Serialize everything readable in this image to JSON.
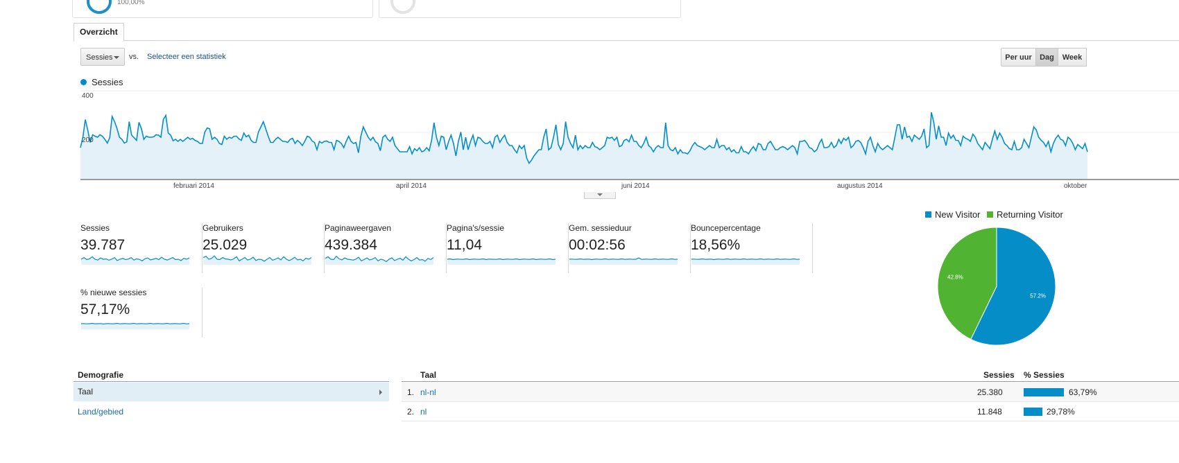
{
  "top_cards": {
    "first_value": "100,00%"
  },
  "tab": {
    "label": "Overzicht"
  },
  "controls": {
    "metric_select": "Sessies",
    "vs_label": "vs.",
    "compare_link": "Selecteer een statistiek",
    "periods": [
      "Per uur",
      "Dag",
      "Week"
    ],
    "active_period": "Dag"
  },
  "colors": {
    "accent": "#058dc7",
    "new_visitor": "#058dc7",
    "returning_visitor": "#50b432",
    "link": "#1a6ea6"
  },
  "chart_data": [
    {
      "type": "line",
      "series": [
        {
          "name": "Sessies",
          "values": [
            150,
            200,
            285,
            235,
            175,
            212,
            205,
            200,
            212,
            205,
            190,
            172,
            198,
            300,
            275,
            242,
            200,
            190,
            172,
            178,
            275,
            210,
            198,
            185,
            272,
            242,
            190,
            205,
            200,
            200,
            202,
            212,
            210,
            200,
            285,
            305,
            220,
            210,
            183,
            190,
            180,
            190,
            180,
            190,
            200,
            190,
            195,
            185,
            180,
            170,
            170,
            225,
            245,
            240,
            190,
            200,
            190,
            170,
            165,
            205,
            190,
            200,
            195,
            205,
            205,
            192,
            185,
            220,
            202,
            210,
            185,
            175,
            175,
            225,
            250,
            275,
            240,
            205,
            175,
            175,
            190,
            200,
            190,
            180,
            180,
            175,
            190,
            195,
            170,
            185,
            175,
            160,
            180,
            205,
            200,
            182,
            175,
            140,
            180,
            172,
            180,
            182,
            175,
            175,
            140,
            185,
            180,
            170,
            150,
            180,
            205,
            180,
            170,
            175,
            125,
            205,
            250,
            225,
            200,
            185,
            200,
            178,
            170,
            135,
            200,
            210,
            190,
            180,
            200,
            160,
            145,
            130,
            130,
            130,
            130,
            155,
            120,
            145,
            135,
            150,
            130,
            135,
            150,
            135,
            185,
            270,
            200,
            160,
            205,
            200,
            140,
            180,
            210,
            170,
            110,
            180,
            225,
            140,
            200,
            140,
            180,
            210,
            160,
            200,
            195,
            180,
            170,
            170,
            180,
            150,
            200,
            210,
            175,
            195,
            210,
            175,
            160,
            160,
            140,
            125,
            160,
            145,
            160,
            100,
            75,
            90,
            110,
            125,
            140,
            140,
            200,
            240,
            140,
            150,
            200,
            260,
            165,
            140,
            170,
            275,
            200,
            170,
            150,
            210,
            140,
            160,
            145,
            160,
            150,
            150,
            175,
            155,
            150,
            140,
            150,
            160,
            200,
            195,
            200,
            185,
            200,
            155,
            160,
            185,
            190,
            178,
            210,
            180,
            180,
            160,
            150,
            170,
            200,
            160,
            150,
            130,
            150,
            160,
            150,
            150,
            270,
            160,
            140,
            135,
            150,
            120,
            140,
            125,
            125,
            120,
            135,
            160,
            175,
            160,
            155,
            150,
            140,
            150,
            160,
            150,
            150,
            190,
            150,
            160,
            160,
            140,
            150,
            130,
            140,
            125,
            125,
            155,
            130,
            130,
            120,
            140,
            155,
            135,
            170,
            165,
            140,
            140,
            170,
            180,
            160,
            140,
            140,
            150,
            155,
            150,
            140,
            150,
            160,
            150,
            120,
            180,
            180,
            185,
            170,
            150,
            145,
            130,
            140,
            170,
            190,
            150,
            150,
            155,
            175,
            150,
            160,
            190,
            170,
            195,
            185,
            200,
            150,
            160,
            180,
            185,
            175,
            150,
            120,
            180,
            200,
            160,
            130,
            170,
            150,
            140,
            150,
            160,
            150,
            140,
            200,
            260,
            260,
            190,
            250,
            200,
            205,
            180,
            210,
            200,
            190,
            205,
            240,
            150,
            160,
            320,
            270,
            190,
            255,
            200,
            200,
            160,
            220,
            195,
            210,
            185,
            185,
            160,
            205,
            195,
            190,
            180,
            215,
            200,
            170,
            155,
            140,
            175,
            160,
            145,
            190,
            230,
            190,
            220,
            200,
            170,
            160,
            145,
            140,
            180,
            140,
            140,
            150,
            190,
            170,
            150,
            200,
            250,
            235,
            200,
            185,
            175,
            155,
            180,
            130,
            170,
            195,
            210,
            190,
            185,
            160,
            200,
            190,
            170,
            140,
            165,
            155,
            145,
            170,
            130
          ]
        }
      ],
      "x_tick_labels": [
        "februari 2014",
        "april 2014",
        "juni 2014",
        "augustus 2014",
        "oktober"
      ],
      "y_tick_labels": [
        "400",
        "200"
      ],
      "ylim": [
        0,
        400
      ],
      "grid": true,
      "legend": "top-left",
      "fill": "area"
    },
    {
      "type": "pie",
      "labels": [
        "New Visitor",
        "Returning Visitor"
      ],
      "values": [
        57.2,
        42.8
      ],
      "slice_labels": [
        "57.2%",
        "42.8%"
      ],
      "legend": "top"
    }
  ],
  "metrics": [
    {
      "label": "Sessies",
      "value": "39.787"
    },
    {
      "label": "Gebruikers",
      "value": "25.029"
    },
    {
      "label": "Paginaweergaven",
      "value": "439.384"
    },
    {
      "label": "Pagina's/sessie",
      "value": "11,04"
    },
    {
      "label": "Gem. sessieduur",
      "value": "00:02:56"
    },
    {
      "label": "Bouncepercentage",
      "value": "18,56%"
    },
    {
      "label": "% nieuwe sessies",
      "value": "57,17%"
    }
  ],
  "sparklines": [
    [
      150,
      160,
      148,
      152,
      165,
      150,
      145,
      158,
      149,
      152,
      144,
      150,
      160,
      142,
      150,
      155,
      148,
      151,
      160,
      145,
      152,
      149,
      140,
      153,
      158,
      146,
      150,
      155,
      148,
      162,
      150,
      145,
      152,
      160,
      148,
      150,
      142,
      155,
      150,
      158
    ],
    [
      160,
      168,
      150,
      155,
      170,
      150,
      148,
      160,
      152,
      150,
      146,
      152,
      165,
      140,
      150,
      160,
      145,
      150,
      162,
      142,
      150,
      148,
      138,
      150,
      160,
      144,
      150,
      158,
      146,
      165,
      150,
      142,
      150,
      162,
      146,
      150,
      140,
      156,
      150,
      160
    ],
    [
      155,
      165,
      150,
      148,
      168,
      152,
      146,
      158,
      150,
      148,
      145,
      150,
      162,
      140,
      148,
      158,
      146,
      150,
      160,
      140,
      150,
      146,
      136,
      150,
      158,
      142,
      150,
      156,
      144,
      165,
      150,
      140,
      148,
      160,
      145,
      148,
      138,
      155,
      148,
      160
    ],
    [
      150,
      152,
      148,
      150,
      151,
      149,
      150,
      152,
      148,
      150,
      151,
      149,
      150,
      152,
      148,
      151,
      150,
      149,
      150,
      152,
      148,
      150,
      151,
      149,
      150,
      152,
      148,
      150,
      151,
      149,
      150,
      152,
      148,
      150,
      151,
      149,
      150,
      152,
      148,
      150
    ],
    [
      150,
      151,
      149,
      150,
      152,
      149,
      150,
      151,
      148,
      150,
      151,
      149,
      150,
      152,
      149,
      150,
      151,
      149,
      150,
      152,
      149,
      150,
      151,
      149,
      150,
      158,
      149,
      150,
      151,
      149,
      150,
      152,
      149,
      150,
      151,
      149,
      150,
      152,
      149,
      150
    ],
    [
      150,
      151,
      149,
      150,
      152,
      149,
      150,
      151,
      148,
      150,
      151,
      149,
      150,
      152,
      149,
      150,
      151,
      149,
      150,
      152,
      149,
      150,
      151,
      149,
      150,
      152,
      149,
      150,
      151,
      149,
      150,
      152,
      149,
      150,
      151,
      149,
      150,
      152,
      149,
      150
    ],
    [
      150,
      151,
      149,
      150,
      152,
      149,
      150,
      151,
      148,
      150,
      151,
      149,
      150,
      152,
      149,
      150,
      151,
      149,
      150,
      152,
      149,
      150,
      151,
      149,
      150,
      152,
      149,
      150,
      151,
      149,
      150,
      152,
      149,
      150,
      151,
      149,
      150,
      152,
      149,
      150
    ]
  ],
  "demographics": {
    "header": "Demografie",
    "items": [
      {
        "label": "Taal",
        "selected": true
      },
      {
        "label": "Land/gebied",
        "selected": false
      }
    ]
  },
  "language_table": {
    "headers": {
      "name": "Taal",
      "sessions": "Sessies",
      "pct": "% Sessies"
    },
    "rows": [
      {
        "rank": "1.",
        "name": "nl-nl",
        "sessions": "25.380",
        "pct": "63,79%",
        "pct_value": 63.79
      },
      {
        "rank": "2.",
        "name": "nl",
        "sessions": "11.848",
        "pct": "29,78%",
        "pct_value": 29.78
      }
    ]
  }
}
